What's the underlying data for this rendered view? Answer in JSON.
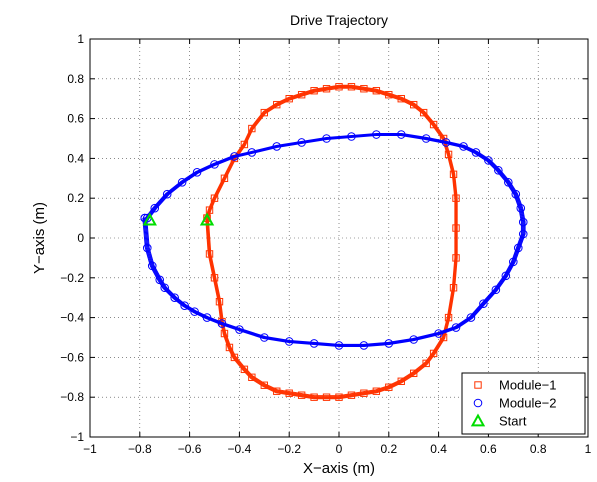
{
  "chart_data": {
    "type": "scatter",
    "title": "Drive Trajectory",
    "xlabel": "X−axis (m)",
    "ylabel": "Y−axis (m)",
    "xlim": [
      -1,
      1
    ],
    "ylim": [
      -1,
      1
    ],
    "xticks": [
      -1,
      -0.8,
      -0.6,
      -0.4,
      -0.2,
      0,
      0.2,
      0.4,
      0.6,
      0.8,
      1
    ],
    "yticks": [
      -1,
      -0.8,
      -0.6,
      -0.4,
      -0.2,
      0,
      0.2,
      0.4,
      0.6,
      0.8,
      1
    ],
    "xtick_labels": [
      "−1",
      "−0.8",
      "−0.6",
      "−0.4",
      "−0.2",
      "0",
      "0.2",
      "0.4",
      "0.6",
      "0.8",
      "1"
    ],
    "ytick_labels": [
      "−1",
      "−0.8",
      "−0.6",
      "−0.4",
      "−0.2",
      "0",
      "0.2",
      "0.4",
      "0.6",
      "0.8",
      "1"
    ],
    "grid": true,
    "legend_position": "bottom-right",
    "series": [
      {
        "name": "Module−1",
        "color": "#ff3300",
        "marker": "square",
        "x": [
          -0.53,
          -0.52,
          -0.5,
          -0.48,
          -0.47,
          -0.46,
          -0.44,
          -0.42,
          -0.38,
          -0.35,
          -0.3,
          -0.25,
          -0.2,
          -0.15,
          -0.1,
          -0.05,
          0,
          0.05,
          0.1,
          0.15,
          0.2,
          0.25,
          0.3,
          0.35,
          0.38,
          0.42,
          0.44,
          0.46,
          0.47,
          0.47,
          0.47,
          0.46,
          0.44,
          0.42,
          0.38,
          0.34,
          0.3,
          0.25,
          0.2,
          0.15,
          0.1,
          0.05,
          0,
          -0.05,
          -0.1,
          -0.15,
          -0.2,
          -0.25,
          -0.3,
          -0.35,
          -0.38,
          -0.42,
          -0.46,
          -0.5,
          -0.52,
          -0.53
        ],
        "y": [
          0.1,
          -0.08,
          -0.2,
          -0.32,
          -0.42,
          -0.48,
          -0.55,
          -0.6,
          -0.66,
          -0.7,
          -0.74,
          -0.77,
          -0.78,
          -0.79,
          -0.8,
          -0.8,
          -0.8,
          -0.79,
          -0.78,
          -0.77,
          -0.75,
          -0.72,
          -0.68,
          -0.63,
          -0.58,
          -0.5,
          -0.4,
          -0.25,
          -0.1,
          0.05,
          0.2,
          0.32,
          0.42,
          0.5,
          0.57,
          0.63,
          0.67,
          0.7,
          0.72,
          0.74,
          0.75,
          0.76,
          0.76,
          0.75,
          0.74,
          0.72,
          0.7,
          0.67,
          0.63,
          0.55,
          0.47,
          0.4,
          0.3,
          0.2,
          0.14,
          0.1
        ]
      },
      {
        "name": "Module−2",
        "color": "#0000ff",
        "marker": "circle",
        "x": [
          -0.78,
          -0.77,
          -0.75,
          -0.72,
          -0.7,
          -0.66,
          -0.62,
          -0.58,
          -0.53,
          -0.47,
          -0.4,
          -0.3,
          -0.2,
          -0.1,
          0,
          0.1,
          0.2,
          0.3,
          0.4,
          0.47,
          0.53,
          0.58,
          0.63,
          0.67,
          0.7,
          0.72,
          0.74,
          0.74,
          0.73,
          0.71,
          0.68,
          0.64,
          0.6,
          0.55,
          0.5,
          0.43,
          0.35,
          0.25,
          0.15,
          0.05,
          -0.05,
          -0.15,
          -0.25,
          -0.35,
          -0.42,
          -0.5,
          -0.57,
          -0.63,
          -0.69,
          -0.74,
          -0.77,
          -0.78
        ],
        "y": [
          0.1,
          -0.05,
          -0.14,
          -0.21,
          -0.25,
          -0.3,
          -0.34,
          -0.37,
          -0.4,
          -0.43,
          -0.46,
          -0.5,
          -0.52,
          -0.53,
          -0.54,
          -0.54,
          -0.53,
          -0.51,
          -0.48,
          -0.45,
          -0.4,
          -0.33,
          -0.26,
          -0.19,
          -0.12,
          -0.05,
          0.02,
          0.08,
          0.15,
          0.22,
          0.28,
          0.34,
          0.39,
          0.43,
          0.46,
          0.48,
          0.5,
          0.52,
          0.52,
          0.51,
          0.5,
          0.48,
          0.46,
          0.43,
          0.41,
          0.37,
          0.33,
          0.28,
          0.22,
          0.15,
          0.1,
          0.1
        ]
      },
      {
        "name": "Start",
        "color": "#00dd00",
        "marker": "triangle",
        "x": [
          -0.76,
          -0.53
        ],
        "y": [
          0.09,
          0.09
        ]
      }
    ]
  }
}
